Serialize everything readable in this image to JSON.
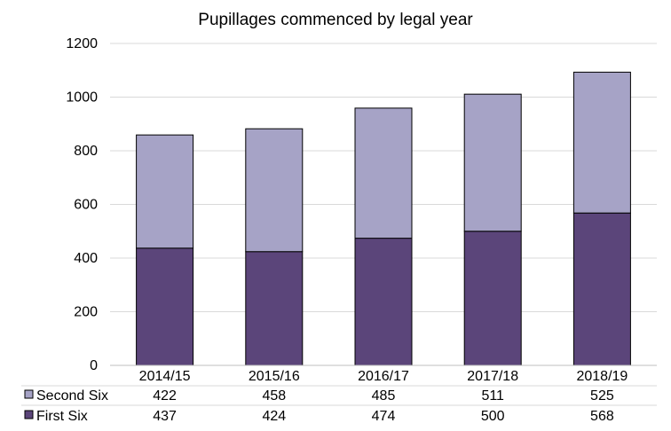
{
  "chart_data": {
    "type": "bar",
    "stacked": true,
    "title": "Pupillages commenced by legal year",
    "categories": [
      "2014/15",
      "2015/16",
      "2016/17",
      "2017/18",
      "2018/19"
    ],
    "series": [
      {
        "name": "First Six",
        "values": [
          437,
          424,
          474,
          500,
          568
        ],
        "color": "#5b457a"
      },
      {
        "name": "Second Six",
        "values": [
          422,
          458,
          485,
          511,
          525
        ],
        "color": "#a6a3c6"
      }
    ],
    "table_rows": [
      "Second Six",
      "First Six"
    ],
    "ylim": [
      0,
      1200
    ],
    "yticks": [
      "0",
      "200",
      "400",
      "600",
      "800",
      "1000",
      "1200"
    ],
    "grid": true,
    "legend": "data-table"
  }
}
